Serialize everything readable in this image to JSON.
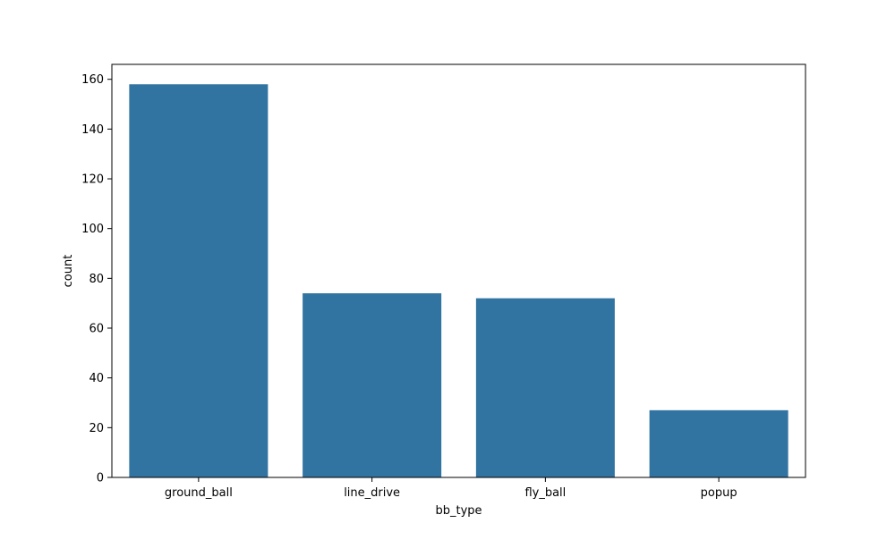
{
  "chart_data": {
    "type": "bar",
    "title": "",
    "xlabel": "bb_type",
    "ylabel": "count",
    "categories": [
      "ground_ball",
      "line_drive",
      "fly_ball",
      "popup"
    ],
    "values": [
      158,
      74,
      72,
      27
    ],
    "ylim": [
      0,
      166
    ],
    "yticks": [
      0,
      20,
      40,
      60,
      80,
      100,
      120,
      140,
      160
    ],
    "grid": false,
    "legend": "none",
    "bar_color": "#3274a1"
  }
}
